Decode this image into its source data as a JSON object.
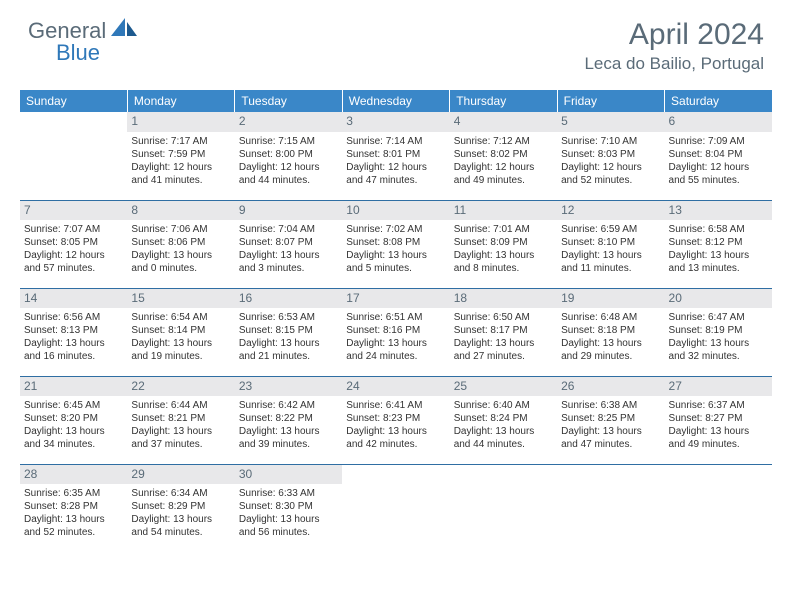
{
  "logo": {
    "text_gray": "General",
    "text_blue": "Blue"
  },
  "title": "April 2024",
  "location": "Leca do Bailio, Portugal",
  "colors": {
    "header_bg": "#3a87c8",
    "header_text": "#ffffff",
    "border": "#2f6ea3",
    "daynum_bg": "#e8e8ea",
    "text_gray": "#5a6b78",
    "logo_blue": "#2f78b9",
    "body_text": "#333333"
  },
  "day_headers": [
    "Sunday",
    "Monday",
    "Tuesday",
    "Wednesday",
    "Thursday",
    "Friday",
    "Saturday"
  ],
  "weeks": [
    [
      {
        "n": "",
        "lines": []
      },
      {
        "n": "1",
        "lines": [
          "Sunrise: 7:17 AM",
          "Sunset: 7:59 PM",
          "Daylight: 12 hours",
          "and 41 minutes."
        ]
      },
      {
        "n": "2",
        "lines": [
          "Sunrise: 7:15 AM",
          "Sunset: 8:00 PM",
          "Daylight: 12 hours",
          "and 44 minutes."
        ]
      },
      {
        "n": "3",
        "lines": [
          "Sunrise: 7:14 AM",
          "Sunset: 8:01 PM",
          "Daylight: 12 hours",
          "and 47 minutes."
        ]
      },
      {
        "n": "4",
        "lines": [
          "Sunrise: 7:12 AM",
          "Sunset: 8:02 PM",
          "Daylight: 12 hours",
          "and 49 minutes."
        ]
      },
      {
        "n": "5",
        "lines": [
          "Sunrise: 7:10 AM",
          "Sunset: 8:03 PM",
          "Daylight: 12 hours",
          "and 52 minutes."
        ]
      },
      {
        "n": "6",
        "lines": [
          "Sunrise: 7:09 AM",
          "Sunset: 8:04 PM",
          "Daylight: 12 hours",
          "and 55 minutes."
        ]
      }
    ],
    [
      {
        "n": "7",
        "lines": [
          "Sunrise: 7:07 AM",
          "Sunset: 8:05 PM",
          "Daylight: 12 hours",
          "and 57 minutes."
        ]
      },
      {
        "n": "8",
        "lines": [
          "Sunrise: 7:06 AM",
          "Sunset: 8:06 PM",
          "Daylight: 13 hours",
          "and 0 minutes."
        ]
      },
      {
        "n": "9",
        "lines": [
          "Sunrise: 7:04 AM",
          "Sunset: 8:07 PM",
          "Daylight: 13 hours",
          "and 3 minutes."
        ]
      },
      {
        "n": "10",
        "lines": [
          "Sunrise: 7:02 AM",
          "Sunset: 8:08 PM",
          "Daylight: 13 hours",
          "and 5 minutes."
        ]
      },
      {
        "n": "11",
        "lines": [
          "Sunrise: 7:01 AM",
          "Sunset: 8:09 PM",
          "Daylight: 13 hours",
          "and 8 minutes."
        ]
      },
      {
        "n": "12",
        "lines": [
          "Sunrise: 6:59 AM",
          "Sunset: 8:10 PM",
          "Daylight: 13 hours",
          "and 11 minutes."
        ]
      },
      {
        "n": "13",
        "lines": [
          "Sunrise: 6:58 AM",
          "Sunset: 8:12 PM",
          "Daylight: 13 hours",
          "and 13 minutes."
        ]
      }
    ],
    [
      {
        "n": "14",
        "lines": [
          "Sunrise: 6:56 AM",
          "Sunset: 8:13 PM",
          "Daylight: 13 hours",
          "and 16 minutes."
        ]
      },
      {
        "n": "15",
        "lines": [
          "Sunrise: 6:54 AM",
          "Sunset: 8:14 PM",
          "Daylight: 13 hours",
          "and 19 minutes."
        ]
      },
      {
        "n": "16",
        "lines": [
          "Sunrise: 6:53 AM",
          "Sunset: 8:15 PM",
          "Daylight: 13 hours",
          "and 21 minutes."
        ]
      },
      {
        "n": "17",
        "lines": [
          "Sunrise: 6:51 AM",
          "Sunset: 8:16 PM",
          "Daylight: 13 hours",
          "and 24 minutes."
        ]
      },
      {
        "n": "18",
        "lines": [
          "Sunrise: 6:50 AM",
          "Sunset: 8:17 PM",
          "Daylight: 13 hours",
          "and 27 minutes."
        ]
      },
      {
        "n": "19",
        "lines": [
          "Sunrise: 6:48 AM",
          "Sunset: 8:18 PM",
          "Daylight: 13 hours",
          "and 29 minutes."
        ]
      },
      {
        "n": "20",
        "lines": [
          "Sunrise: 6:47 AM",
          "Sunset: 8:19 PM",
          "Daylight: 13 hours",
          "and 32 minutes."
        ]
      }
    ],
    [
      {
        "n": "21",
        "lines": [
          "Sunrise: 6:45 AM",
          "Sunset: 8:20 PM",
          "Daylight: 13 hours",
          "and 34 minutes."
        ]
      },
      {
        "n": "22",
        "lines": [
          "Sunrise: 6:44 AM",
          "Sunset: 8:21 PM",
          "Daylight: 13 hours",
          "and 37 minutes."
        ]
      },
      {
        "n": "23",
        "lines": [
          "Sunrise: 6:42 AM",
          "Sunset: 8:22 PM",
          "Daylight: 13 hours",
          "and 39 minutes."
        ]
      },
      {
        "n": "24",
        "lines": [
          "Sunrise: 6:41 AM",
          "Sunset: 8:23 PM",
          "Daylight: 13 hours",
          "and 42 minutes."
        ]
      },
      {
        "n": "25",
        "lines": [
          "Sunrise: 6:40 AM",
          "Sunset: 8:24 PM",
          "Daylight: 13 hours",
          "and 44 minutes."
        ]
      },
      {
        "n": "26",
        "lines": [
          "Sunrise: 6:38 AM",
          "Sunset: 8:25 PM",
          "Daylight: 13 hours",
          "and 47 minutes."
        ]
      },
      {
        "n": "27",
        "lines": [
          "Sunrise: 6:37 AM",
          "Sunset: 8:27 PM",
          "Daylight: 13 hours",
          "and 49 minutes."
        ]
      }
    ],
    [
      {
        "n": "28",
        "lines": [
          "Sunrise: 6:35 AM",
          "Sunset: 8:28 PM",
          "Daylight: 13 hours",
          "and 52 minutes."
        ]
      },
      {
        "n": "29",
        "lines": [
          "Sunrise: 6:34 AM",
          "Sunset: 8:29 PM",
          "Daylight: 13 hours",
          "and 54 minutes."
        ]
      },
      {
        "n": "30",
        "lines": [
          "Sunrise: 6:33 AM",
          "Sunset: 8:30 PM",
          "Daylight: 13 hours",
          "and 56 minutes."
        ]
      },
      {
        "n": "",
        "lines": []
      },
      {
        "n": "",
        "lines": []
      },
      {
        "n": "",
        "lines": []
      },
      {
        "n": "",
        "lines": []
      }
    ]
  ]
}
